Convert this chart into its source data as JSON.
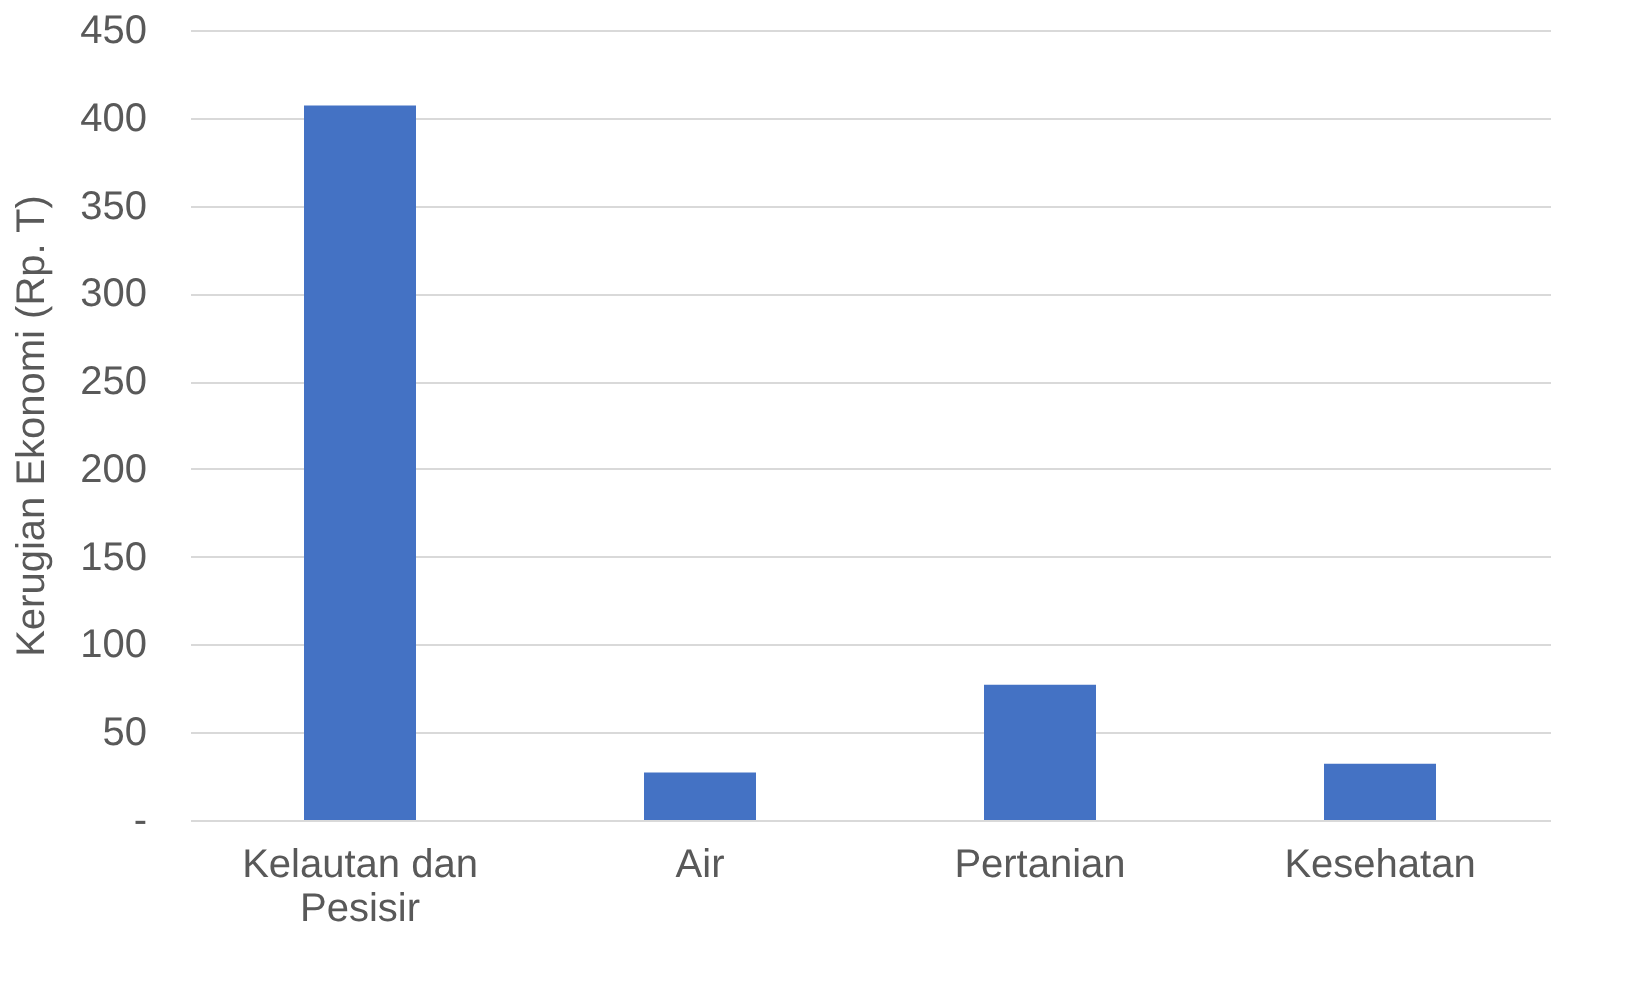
{
  "chart_data": {
    "type": "bar",
    "ylabel": "Kerugian Ekonomi (Rp. T)",
    "categories": [
      "Kelautan dan Pesisir",
      "Air",
      "Pertanian",
      "Kesehatan"
    ],
    "values": [
      407,
      27,
      77,
      32
    ],
    "color": "#4472c4",
    "ylim": [
      0,
      450
    ],
    "yticks": [
      {
        "value": 0,
        "label": "-"
      },
      50,
      100,
      150,
      200,
      250,
      300,
      350,
      400,
      450
    ],
    "grid": "y"
  }
}
